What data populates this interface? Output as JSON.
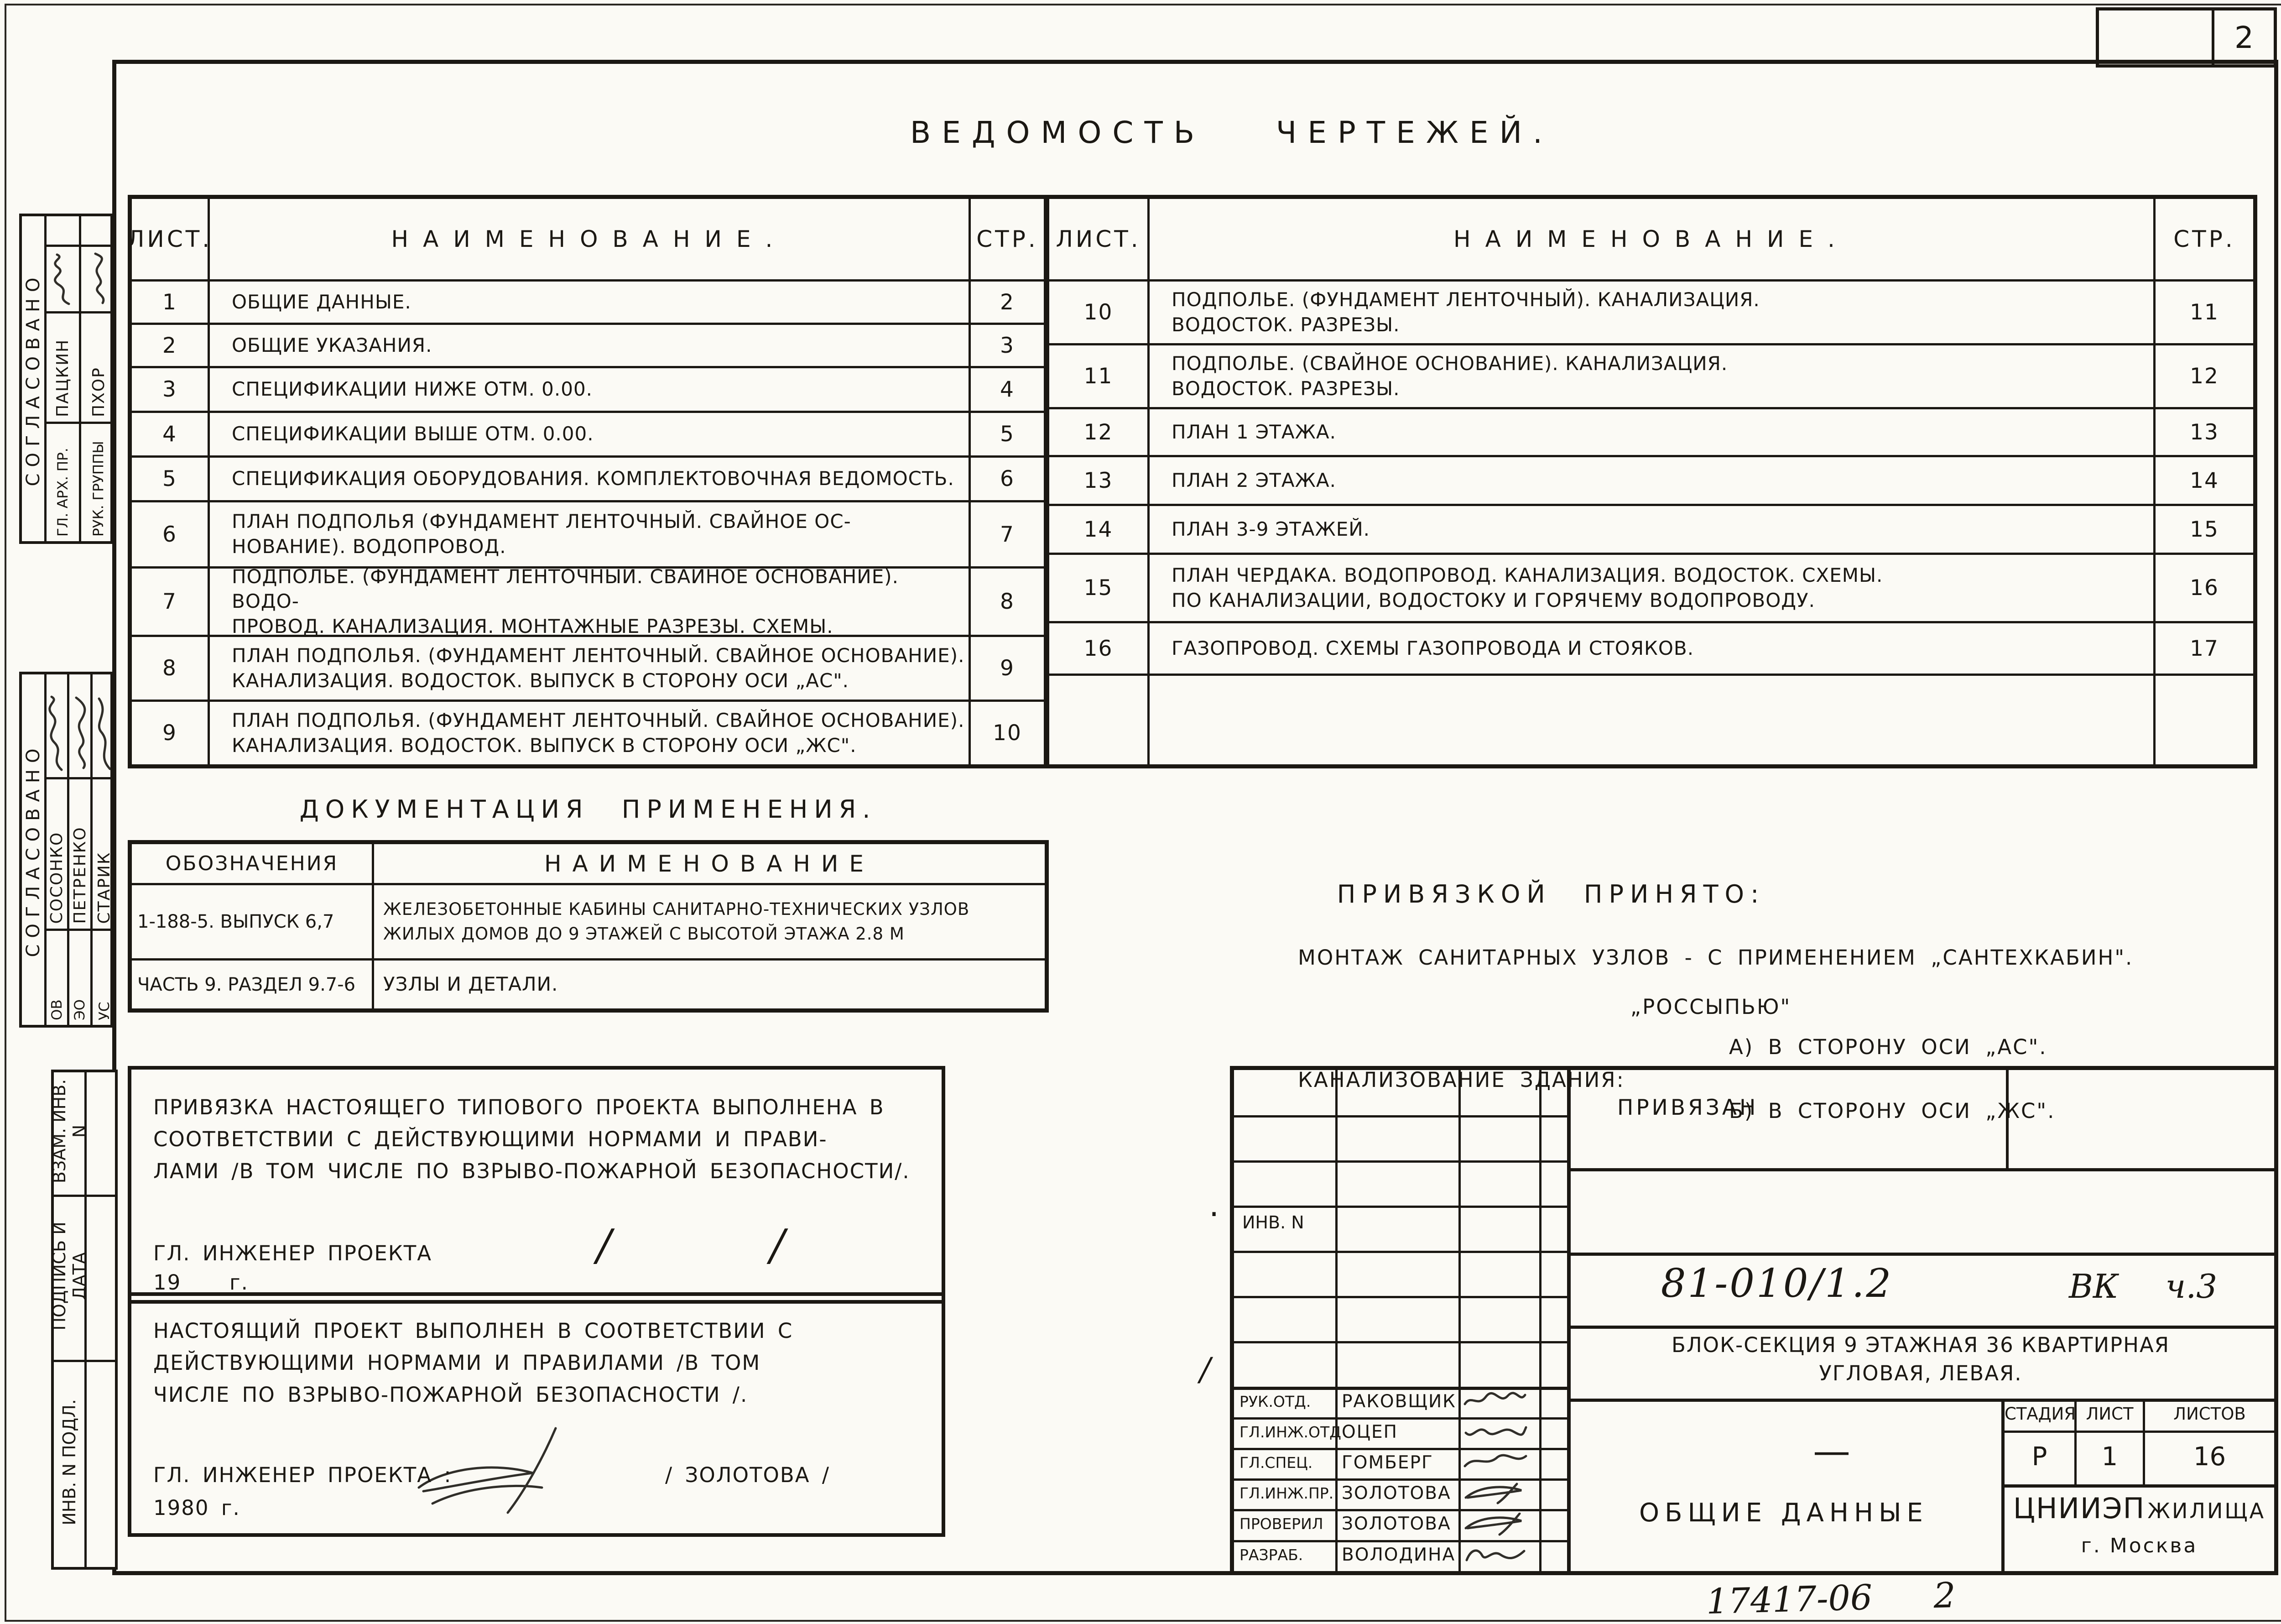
{
  "sheet": {
    "corner_page_number": "2",
    "footer_code": "17417-06",
    "footer_page": "2"
  },
  "register": {
    "title": "Ведомость чертежей.",
    "headers": {
      "sheet": "Лист.",
      "name": "Наименование.",
      "page": "Стр."
    },
    "left_rows": [
      {
        "sheet": "1",
        "name": [
          "Общие данные."
        ],
        "page": "2"
      },
      {
        "sheet": "2",
        "name": [
          "Общие указания."
        ],
        "page": "3"
      },
      {
        "sheet": "3",
        "name": [
          "Спецификации ниже отм. 0.00."
        ],
        "page": "4"
      },
      {
        "sheet": "4",
        "name": [
          "Спецификации выше отм. 0.00."
        ],
        "page": "5"
      },
      {
        "sheet": "5",
        "name": [
          "Спецификация оборудования. Комплектовочная ведомость."
        ],
        "page": "6"
      },
      {
        "sheet": "6",
        "name": [
          "План подполья (Фундамент ленточный. Свайное ос-",
          "нование). Водопровод."
        ],
        "page": "7"
      },
      {
        "sheet": "7",
        "name": [
          "Подполье. (Фундамент ленточный. Свайное основание). Водо-",
          "провод. Канализация. Монтажные разрезы. Схемы."
        ],
        "page": "8"
      },
      {
        "sheet": "8",
        "name": [
          "План подполья. (Фундамент ленточный. Свайное основание).",
          "Канализация. Водосток. Выпуск в сторону оси „Ас\"."
        ],
        "page": "9"
      },
      {
        "sheet": "9",
        "name": [
          "План подполья. (Фундамент ленточный. Свайное основание).",
          "Канализация. Водосток. Выпуск в сторону оси „Жс\"."
        ],
        "page": "10"
      }
    ],
    "right_rows": [
      {
        "sheet": "10",
        "name": [
          "Подполье. (Фундамент ленточный). Канализация.",
          "Водосток. Разрезы."
        ],
        "page": "11"
      },
      {
        "sheet": "11",
        "name": [
          "Подполье. (Свайное основание). Канализация.",
          "Водосток. Разрезы."
        ],
        "page": "12"
      },
      {
        "sheet": "12",
        "name": [
          "План 1 этажа."
        ],
        "page": "13"
      },
      {
        "sheet": "13",
        "name": [
          "План 2 этажа."
        ],
        "page": "14"
      },
      {
        "sheet": "14",
        "name": [
          "План 3-9 этажей."
        ],
        "page": "15"
      },
      {
        "sheet": "15",
        "name": [
          "План чердака. Водопровод. Канализация. Водосток. Схемы.",
          "по канализации, водостоку и горячему водопроводу."
        ],
        "page": "16"
      },
      {
        "sheet": "16",
        "name": [
          "Газопровод. Схемы газопровода и стояков."
        ],
        "page": "17"
      },
      {
        "sheet": "",
        "name": [
          ""
        ],
        "page": ""
      }
    ]
  },
  "application_docs": {
    "title": "Документация применения.",
    "headers": {
      "code": "Обозначения",
      "name": "Наименование"
    },
    "rows": [
      {
        "code": "1-188-5. Выпуск 6,7",
        "name": [
          "Железобетонные кабины санитарно-технических узлов",
          "жилых домов до 9 этажей с высотой этажа 2.8 м"
        ]
      },
      {
        "code": "Часть 9. Раздел 9.7-6",
        "name": [
          "Узлы и детали."
        ]
      }
    ]
  },
  "binding": {
    "title": "Привязкой принято:",
    "montage_line": "Монтаж санитарных узлов - с применением „сантехкабин\".",
    "montage_line2": "„россыпью\"",
    "sewer_label": "Канализование здания:",
    "item_a": "А) в сторону оси „Ас\".",
    "item_b": "Б) в сторону оси „Жс\"."
  },
  "notes": {
    "box1": {
      "lines": [
        "Привязка настоящего типового проекта выполнена в",
        "соответствии с действующими нормами и прави-",
        "лами /в том числе по взрыво-пожарной безопасности/."
      ],
      "signer": "Гл. инженер проекта",
      "slash": "/",
      "year_prefix": "19",
      "year_suffix": "г."
    },
    "box2": {
      "lines": [
        "Настоящий проект выполнен в соответствии с",
        "действующими нормами и правилами /в том",
        "числе по взрыво-пожарной безопасности /."
      ],
      "signer": "Гл. инженер проекта :",
      "signature_name": "/ Золотова /",
      "year": "1980 г."
    }
  },
  "title_block": {
    "attached_label": "Привязан",
    "inv_label": "Инв. N",
    "dot_mark": ".",
    "slash_mark": "/",
    "doc_number": "81-010/1.2",
    "doc_type": "ВК",
    "doc_part": "ч.3",
    "object_lines": [
      "Блок-секция 9 этажная 36 квартирная",
      "угловая, левая."
    ],
    "dash": "—",
    "sheet_title": "Общие данные",
    "org_name": "ЦНИИЭП",
    "org_name2": "жилища",
    "org_city": "г. Москва",
    "stage": {
      "headers": [
        "Стадия",
        "Лист",
        "Листов"
      ],
      "values": [
        "Р",
        "1",
        "16"
      ]
    },
    "staff": [
      {
        "role": "Рук.отд.",
        "name": "Раковщик"
      },
      {
        "role": "Гл.инж.отд",
        "name": "Оцеп"
      },
      {
        "role": "Гл.спец.",
        "name": "Гомберг"
      },
      {
        "role": "Гл.инж.пр.",
        "name": "Золотова"
      },
      {
        "role": "Проверил",
        "name": "Золотова"
      },
      {
        "role": "Разраб.",
        "name": "Володина"
      }
    ]
  },
  "margin": {
    "approved_label": "Согласовано",
    "group1": [
      {
        "role": "Гл. арх. пр.",
        "name": "Пацкин"
      },
      {
        "role": "Рук. группы",
        "name": "Пхор"
      }
    ],
    "group2": [
      {
        "role": "ОВ",
        "name": "Сосонко"
      },
      {
        "role": "ЭО",
        "name": "Петренко"
      },
      {
        "role": "УС",
        "name": "Старик"
      }
    ],
    "stamp_labels": [
      "Инв. N подл.",
      "Подпись и дата",
      "Взам. инв. N"
    ]
  }
}
